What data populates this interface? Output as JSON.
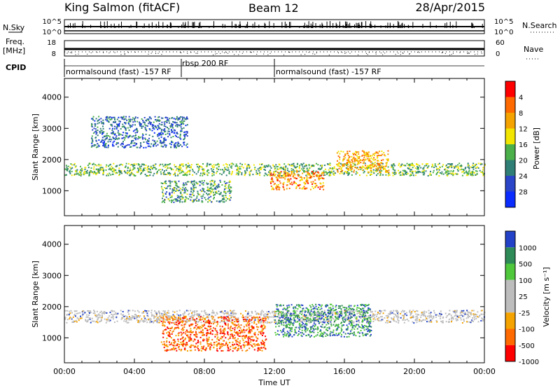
{
  "header": {
    "station": "King Salmon (fitACF)",
    "beam": "Beam 12",
    "date": "28/Apr/2015"
  },
  "noise_panel": {
    "left_label": "N.Sky",
    "right_label": "N.Search",
    "left_ticks": [
      "10^5",
      "10^0"
    ],
    "right_ticks": [
      "10^5",
      "10^0"
    ]
  },
  "freq_panel": {
    "left_label_1": "Freq.",
    "left_label_2": "[MHz]",
    "left_ticks": [
      "18",
      "8"
    ],
    "right_label": "Nave",
    "right_ticks": [
      "60",
      "0"
    ]
  },
  "cpid_panel": {
    "label": "CPID",
    "modes": [
      {
        "text": "normalsound (fast) -157 RF",
        "start_hour": 0
      },
      {
        "text": "rbsp 200 RF",
        "start_hour": 6.7
      },
      {
        "text": "normalsound (fast) -157 RF",
        "start_hour": 12
      }
    ]
  },
  "colors": {
    "power": [
      "#0a2cff",
      "#2a45c8",
      "#2f7f76",
      "#4bb04a",
      "#f2e600",
      "#f5a300",
      "#ff6a00",
      "#ff0000"
    ],
    "velocity": [
      "#ff0000",
      "#ff6a00",
      "#f5a300",
      "#bdbdbd",
      "#bdbdbd",
      "#4fc83c",
      "#2e8b57",
      "#2342c8"
    ]
  },
  "chart_data": [
    {
      "type": "heatmap",
      "title": "",
      "xlabel": "",
      "ylabel": "Slant Range [km]",
      "xlim": [
        0,
        24
      ],
      "ylim": [
        200,
        4600
      ],
      "x_tick_labels": [
        "00:00",
        "04:00",
        "08:00",
        "12:00",
        "16:00",
        "20:00",
        "00:00"
      ],
      "y_tick_labels": [
        "1000",
        "2000",
        "3000",
        "4000"
      ],
      "y_ticks": [
        1000,
        2000,
        3000,
        4000
      ],
      "colorbar": {
        "label": "Power [dB]",
        "tick_labels": [
          "4",
          "8",
          "12",
          "16",
          "20",
          "24",
          "28"
        ],
        "range": [
          0,
          30
        ]
      },
      "features": [
        {
          "name": "main band",
          "hours": [
            0,
            24
          ],
          "range_km": [
            1500,
            1900
          ],
          "value": 12
        },
        {
          "name": "high band",
          "hours": [
            1.5,
            7
          ],
          "range_km": [
            2400,
            3400
          ],
          "value": 6
        },
        {
          "name": "noon patch",
          "hours": [
            11.7,
            14.8
          ],
          "range_km": [
            1050,
            1650
          ],
          "value": 22
        },
        {
          "name": "afternoon patch",
          "hours": [
            15.5,
            18.5
          ],
          "range_km": [
            1600,
            2300
          ],
          "value": 20
        },
        {
          "name": "morning low",
          "hours": [
            5.5,
            9.5
          ],
          "range_km": [
            650,
            1350
          ],
          "value": 10
        }
      ]
    },
    {
      "type": "heatmap",
      "title": "",
      "xlabel": "Time UT",
      "ylabel": "Slant Range [km]",
      "xlim": [
        0,
        24
      ],
      "ylim": [
        200,
        4600
      ],
      "x_tick_labels": [
        "00:00",
        "04:00",
        "08:00",
        "12:00",
        "16:00",
        "20:00",
        "00:00"
      ],
      "y_tick_labels": [
        "1000",
        "2000",
        "3000",
        "4000"
      ],
      "y_ticks": [
        1000,
        2000,
        3000,
        4000
      ],
      "colorbar": {
        "label": "Velocity [m s⁻¹]",
        "tick_labels": [
          "1000",
          "500",
          "100",
          "25",
          "-25",
          "-100",
          "-500",
          "-1000"
        ]
      },
      "features": [
        {
          "name": "ground scatter band",
          "hours": [
            0,
            24
          ],
          "range_km": [
            1500,
            1900
          ],
          "value": 0
        },
        {
          "name": "westward flow",
          "hours": [
            5.5,
            11.5
          ],
          "range_km": [
            600,
            1700
          ],
          "value": -300
        },
        {
          "name": "eastward flow",
          "hours": [
            12,
            17.5
          ],
          "range_km": [
            1050,
            2100
          ],
          "value": 300
        }
      ]
    }
  ]
}
